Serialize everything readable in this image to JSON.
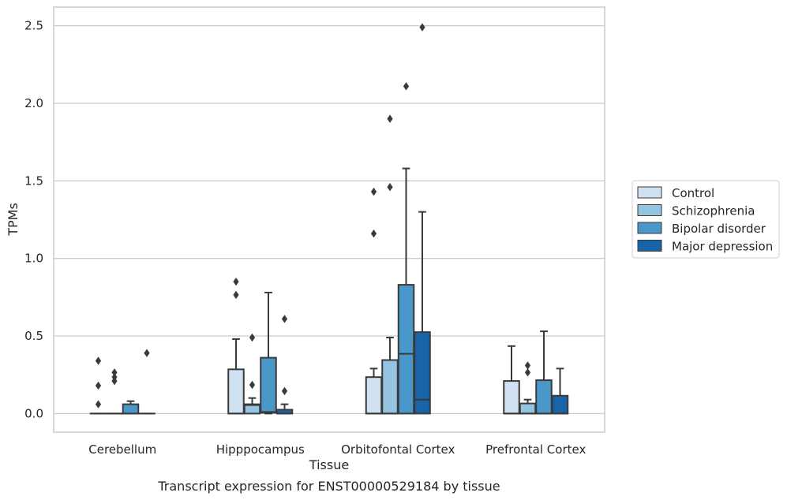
{
  "chart_data": {
    "type": "box",
    "title": "",
    "caption": "Transcript expression for ENST00000529184 by tissue",
    "xlabel": "Tissue",
    "ylabel": "TPMs",
    "ylim": [
      -0.12,
      2.62
    ],
    "yticks": [
      0.0,
      0.5,
      1.0,
      1.5,
      2.0,
      2.5
    ],
    "ytick_labels": [
      "0.0",
      "0.5",
      "1.0",
      "1.5",
      "2.0",
      "2.5"
    ],
    "grid": "horizontal",
    "legend_position": "right",
    "categories": [
      "Cerebellum",
      "Hipppocampus",
      "Orbitofontal Cortex",
      "Prefrontal Cortex"
    ],
    "colors": [
      "#d0e1f2",
      "#94c4df",
      "#4a98c9",
      "#1764ab"
    ],
    "series": [
      {
        "name": "Control",
        "boxes": [
          {
            "q1": 0.0,
            "median": 0.0,
            "q3": 0.0,
            "whisker_low": 0.0,
            "whisker_high": 0.0,
            "outliers": [
              0.06,
              0.18,
              0.34
            ]
          },
          {
            "q1": 0.0,
            "median": 0.0,
            "q3": 0.285,
            "whisker_low": 0.0,
            "whisker_high": 0.48,
            "outliers": [
              0.765,
              0.85
            ]
          },
          {
            "q1": 0.0,
            "median": 0.0,
            "q3": 0.235,
            "whisker_low": 0.0,
            "whisker_high": 0.29,
            "outliers": [
              1.16,
              1.43
            ]
          },
          {
            "q1": 0.0,
            "median": 0.0,
            "q3": 0.21,
            "whisker_low": 0.0,
            "whisker_high": 0.435,
            "outliers": []
          }
        ]
      },
      {
        "name": "Schizophrenia",
        "boxes": [
          {
            "q1": 0.0,
            "median": 0.0,
            "q3": 0.0,
            "whisker_low": 0.0,
            "whisker_high": 0.0,
            "outliers": [
              0.21,
              0.235,
              0.265
            ]
          },
          {
            "q1": 0.0,
            "median": 0.055,
            "q3": 0.06,
            "whisker_low": 0.0,
            "whisker_high": 0.1,
            "outliers": [
              0.185,
              0.49
            ]
          },
          {
            "q1": 0.0,
            "median": 0.0,
            "q3": 0.345,
            "whisker_low": 0.0,
            "whisker_high": 0.49,
            "outliers": [
              1.46,
              1.9
            ]
          },
          {
            "q1": 0.0,
            "median": 0.0,
            "q3": 0.065,
            "whisker_low": 0.0,
            "whisker_high": 0.09,
            "outliers": [
              0.265,
              0.31
            ]
          }
        ]
      },
      {
        "name": "Bipolar disorder",
        "boxes": [
          {
            "q1": 0.0,
            "median": 0.0,
            "q3": 0.06,
            "whisker_low": 0.0,
            "whisker_high": 0.08,
            "outliers": []
          },
          {
            "q1": 0.005,
            "median": 0.01,
            "q3": 0.36,
            "whisker_low": 0.0,
            "whisker_high": 0.78,
            "outliers": []
          },
          {
            "q1": 0.0,
            "median": 0.385,
            "q3": 0.83,
            "whisker_low": 0.0,
            "whisker_high": 1.58,
            "outliers": [
              2.11
            ]
          },
          {
            "q1": 0.0,
            "median": 0.0,
            "q3": 0.215,
            "whisker_low": 0.0,
            "whisker_high": 0.53,
            "outliers": []
          }
        ]
      },
      {
        "name": "Major depression",
        "boxes": [
          {
            "q1": 0.0,
            "median": 0.0,
            "q3": 0.0,
            "whisker_low": 0.0,
            "whisker_high": 0.0,
            "outliers": [
              0.39
            ]
          },
          {
            "q1": 0.0,
            "median": 0.0,
            "q3": 0.025,
            "whisker_low": 0.0,
            "whisker_high": 0.06,
            "outliers": [
              0.145,
              0.61
            ]
          },
          {
            "q1": 0.0,
            "median": 0.09,
            "q3": 0.525,
            "whisker_low": 0.0,
            "whisker_high": 1.3,
            "outliers": [
              2.49
            ]
          },
          {
            "q1": 0.0,
            "median": 0.0,
            "q3": 0.115,
            "whisker_low": 0.0,
            "whisker_high": 0.29,
            "outliers": []
          }
        ]
      }
    ]
  }
}
